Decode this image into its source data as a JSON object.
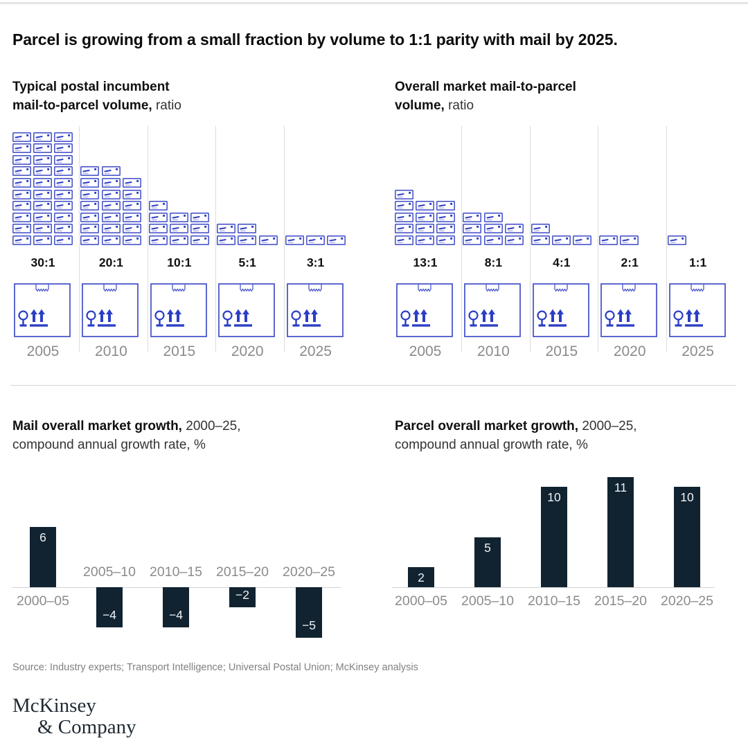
{
  "title": "Parcel is growing from a small fraction by volume to 1:1 parity with mail by 2025.",
  "pictogram_sections": [
    {
      "heading_line1_bold": "Typical postal incumbent",
      "heading_line2_bold": "mail-to-parcel volume,",
      "heading_line2_regular": " ratio"
    },
    {
      "heading_line1_bold": "Overall market mail-to-parcel",
      "heading_line2_bold": "volume,",
      "heading_line2_regular": " ratio"
    }
  ],
  "bar_sections": [
    {
      "heading_line1_bold": "Mail overall market growth,",
      "heading_line1_regular": " 2000–25,",
      "heading_line2": "compound annual growth rate, %"
    },
    {
      "heading_line1_bold": "Parcel overall market growth,",
      "heading_line1_regular": " 2000–25,",
      "heading_line2": "compound annual growth rate, %"
    }
  ],
  "chart_data": [
    {
      "type": "pictogram",
      "title": "Typical postal incumbent mail-to-parcel volume, ratio",
      "categories": [
        "2005",
        "2010",
        "2015",
        "2020",
        "2025"
      ],
      "ratio_labels": [
        "30:1",
        "20:1",
        "10:1",
        "5:1",
        "3:1"
      ],
      "mail_units": [
        30,
        20,
        10,
        5,
        3
      ],
      "parcel_units": [
        1,
        1,
        1,
        1,
        1
      ],
      "mail_icon": "envelope",
      "parcel_icon": "parcel-box",
      "layout": "mail icons stacked 3 per row above one parcel box per year"
    },
    {
      "type": "pictogram",
      "title": "Overall market mail-to-parcel volume, ratio",
      "categories": [
        "2005",
        "2010",
        "2015",
        "2020",
        "2025"
      ],
      "ratio_labels": [
        "13:1",
        "8:1",
        "4:1",
        "2:1",
        "1:1"
      ],
      "mail_units": [
        13,
        8,
        4,
        2,
        1
      ],
      "parcel_units": [
        1,
        1,
        1,
        1,
        1
      ],
      "mail_icon": "envelope",
      "parcel_icon": "parcel-box",
      "layout": "mail icons stacked 3 per row above one parcel box per year"
    },
    {
      "type": "bar",
      "title": "Mail overall market growth, 2000–25, compound annual growth rate, %",
      "categories": [
        "2000–05",
        "2005–10",
        "2010–15",
        "2015–20",
        "2020–25"
      ],
      "values": [
        6,
        -4,
        -4,
        -2,
        -5
      ],
      "ylim": [
        -6,
        7
      ],
      "grid": false,
      "legend": "none",
      "bar_color": "#112331",
      "value_labels": "inside bar ends, white"
    },
    {
      "type": "bar",
      "title": "Parcel overall market growth, 2000–25, compound annual growth rate, %",
      "categories": [
        "2000–05",
        "2005–10",
        "2010–15",
        "2015–20",
        "2020–25"
      ],
      "values": [
        2,
        5,
        10,
        11,
        10
      ],
      "ylim": [
        0,
        12
      ],
      "grid": false,
      "legend": "none",
      "bar_color": "#112331",
      "value_labels": "inside bar tops, white"
    }
  ],
  "colors": {
    "accent_blue": "#4a57c9",
    "accent_blue_dark": "#2b3ec4",
    "accent_lavender": "#b7b3e8",
    "bar_navy": "#112331",
    "text_gray": "#8b8b8b",
    "divider": "#dcdcdc"
  },
  "source_line": "Source: Industry experts; Transport Intelligence; Universal Postal Union; McKinsey analysis",
  "logo": {
    "line1": "McKinsey",
    "line2": "& Company"
  }
}
